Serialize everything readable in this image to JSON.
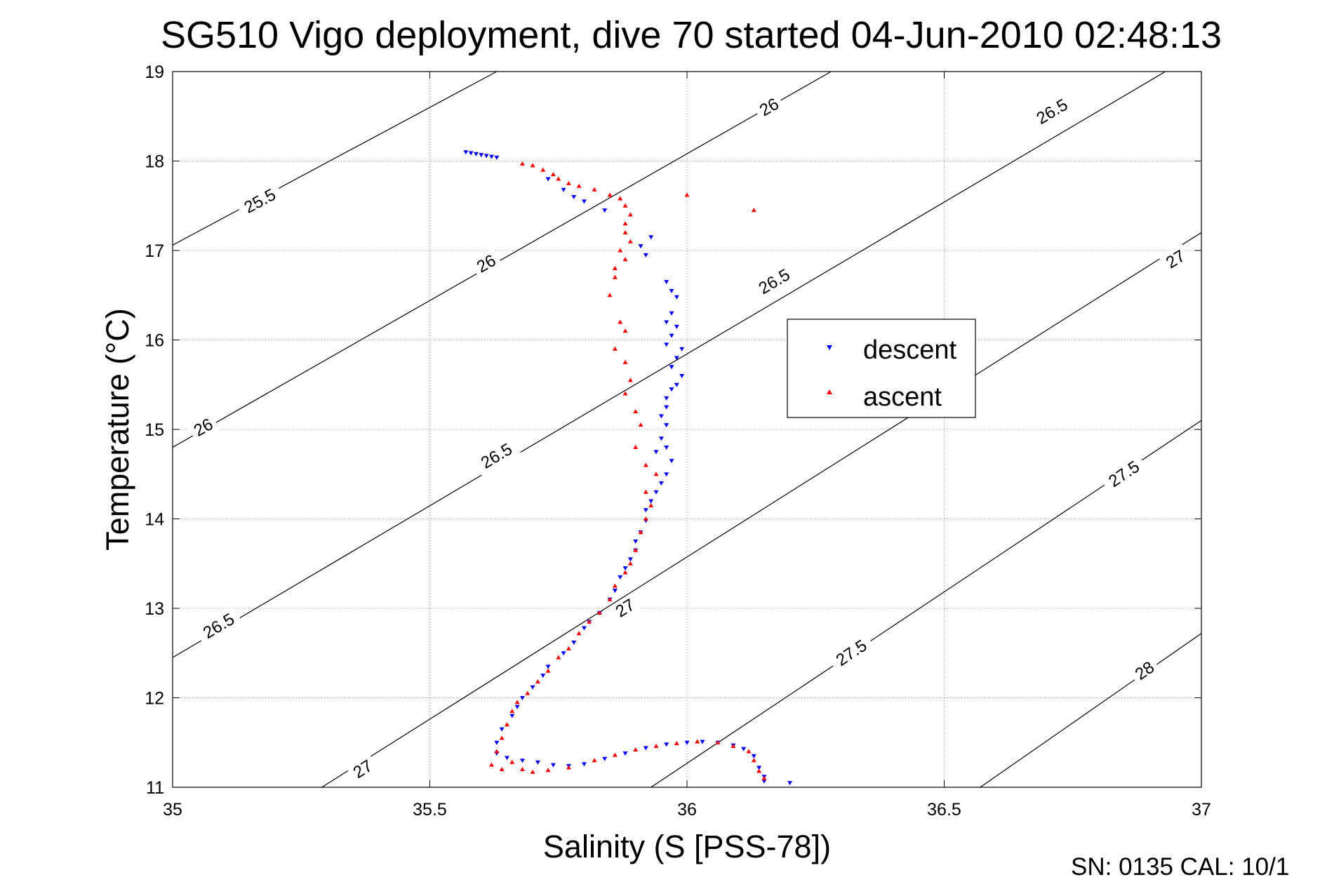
{
  "chart_data": {
    "type": "scatter",
    "title": "SG510 Vigo deployment, dive 70 started 04-Jun-2010 02:48:13",
    "xlabel": "Salinity (S [PSS-78])",
    "ylabel": "Temperature (°C)",
    "xlim": [
      35,
      37
    ],
    "ylim": [
      11,
      19
    ],
    "xticks": [
      35,
      35.5,
      36,
      36.5,
      37
    ],
    "xtick_labels": [
      "35",
      "35.5",
      "36",
      "36.5",
      "37"
    ],
    "yticks": [
      11,
      12,
      13,
      14,
      15,
      16,
      17,
      18,
      19
    ],
    "ytick_labels": [
      "11",
      "12",
      "13",
      "14",
      "15",
      "16",
      "17",
      "18",
      "19"
    ],
    "grid": true,
    "legend_position": "center-right",
    "footer": "SN: 0135  CAL: 10/1",
    "colors": {
      "descent": "#0000ff",
      "ascent": "#ff0000",
      "contour": "#000000"
    },
    "series": [
      {
        "name": "descent",
        "marker": "triangle-down",
        "color": "#0000ff",
        "points": [
          [
            35.57,
            18.1
          ],
          [
            35.58,
            18.09
          ],
          [
            35.59,
            18.08
          ],
          [
            35.6,
            18.07
          ],
          [
            35.61,
            18.06
          ],
          [
            35.62,
            18.05
          ],
          [
            35.63,
            18.04
          ],
          [
            35.73,
            17.8
          ],
          [
            35.76,
            17.68
          ],
          [
            35.78,
            17.6
          ],
          [
            35.8,
            17.55
          ],
          [
            35.84,
            17.45
          ],
          [
            35.93,
            17.15
          ],
          [
            35.91,
            17.05
          ],
          [
            35.92,
            16.95
          ],
          [
            35.96,
            16.65
          ],
          [
            35.97,
            16.55
          ],
          [
            35.98,
            16.48
          ],
          [
            35.97,
            16.3
          ],
          [
            35.96,
            16.2
          ],
          [
            35.98,
            16.15
          ],
          [
            35.97,
            16.05
          ],
          [
            35.96,
            15.95
          ],
          [
            35.99,
            15.9
          ],
          [
            35.98,
            15.8
          ],
          [
            35.97,
            15.7
          ],
          [
            35.99,
            15.6
          ],
          [
            35.98,
            15.5
          ],
          [
            35.97,
            15.45
          ],
          [
            35.96,
            15.35
          ],
          [
            35.96,
            15.25
          ],
          [
            35.95,
            15.15
          ],
          [
            35.96,
            15.05
          ],
          [
            35.95,
            14.9
          ],
          [
            35.96,
            14.8
          ],
          [
            35.94,
            14.75
          ],
          [
            35.97,
            14.65
          ],
          [
            35.96,
            14.5
          ],
          [
            35.95,
            14.4
          ],
          [
            35.94,
            14.3
          ],
          [
            35.93,
            14.2
          ],
          [
            35.92,
            14.1
          ],
          [
            35.92,
            13.98
          ],
          [
            35.91,
            13.85
          ],
          [
            35.9,
            13.75
          ],
          [
            35.9,
            13.65
          ],
          [
            35.89,
            13.55
          ],
          [
            35.88,
            13.45
          ],
          [
            35.87,
            13.35
          ],
          [
            35.86,
            13.2
          ],
          [
            35.85,
            13.1
          ],
          [
            35.83,
            12.95
          ],
          [
            35.81,
            12.85
          ],
          [
            35.8,
            12.78
          ],
          [
            35.78,
            12.62
          ],
          [
            35.76,
            12.5
          ],
          [
            35.73,
            12.35
          ],
          [
            35.72,
            12.25
          ],
          [
            35.7,
            12.12
          ],
          [
            35.68,
            12.0
          ],
          [
            35.67,
            11.9
          ],
          [
            35.66,
            11.8
          ],
          [
            35.64,
            11.65
          ],
          [
            35.63,
            11.5
          ],
          [
            35.63,
            11.38
          ],
          [
            35.65,
            11.33
          ],
          [
            35.68,
            11.3
          ],
          [
            35.71,
            11.28
          ],
          [
            35.74,
            11.25
          ],
          [
            35.77,
            11.24
          ],
          [
            35.8,
            11.26
          ],
          [
            35.84,
            11.32
          ],
          [
            35.88,
            11.38
          ],
          [
            35.92,
            11.44
          ],
          [
            35.96,
            11.48
          ],
          [
            36.0,
            11.5
          ],
          [
            36.03,
            11.51
          ],
          [
            36.06,
            11.5
          ],
          [
            36.09,
            11.47
          ],
          [
            36.11,
            11.43
          ],
          [
            36.13,
            11.35
          ],
          [
            36.14,
            11.22
          ],
          [
            36.15,
            11.12
          ],
          [
            36.15,
            11.07
          ],
          [
            36.2,
            11.05
          ]
        ]
      },
      {
        "name": "ascent",
        "marker": "triangle-up",
        "color": "#ff0000",
        "points": [
          [
            35.68,
            17.97
          ],
          [
            35.7,
            17.95
          ],
          [
            35.72,
            17.9
          ],
          [
            35.74,
            17.85
          ],
          [
            35.75,
            17.8
          ],
          [
            35.77,
            17.75
          ],
          [
            35.79,
            17.72
          ],
          [
            35.82,
            17.68
          ],
          [
            35.85,
            17.62
          ],
          [
            35.87,
            17.58
          ],
          [
            35.88,
            17.5
          ],
          [
            35.89,
            17.4
          ],
          [
            35.88,
            17.3
          ],
          [
            35.88,
            17.2
          ],
          [
            35.89,
            17.1
          ],
          [
            35.87,
            17.0
          ],
          [
            35.88,
            16.9
          ],
          [
            35.86,
            16.8
          ],
          [
            35.86,
            16.7
          ],
          [
            35.85,
            16.5
          ],
          [
            35.87,
            16.2
          ],
          [
            35.88,
            16.1
          ],
          [
            35.86,
            15.9
          ],
          [
            35.88,
            15.75
          ],
          [
            35.89,
            15.55
          ],
          [
            35.88,
            15.4
          ],
          [
            35.9,
            15.2
          ],
          [
            35.91,
            15.05
          ],
          [
            35.9,
            14.8
          ],
          [
            35.92,
            14.6
          ],
          [
            35.94,
            14.5
          ],
          [
            35.92,
            14.3
          ],
          [
            35.93,
            14.15
          ],
          [
            35.92,
            14.0
          ],
          [
            35.91,
            13.85
          ],
          [
            35.9,
            13.65
          ],
          [
            35.89,
            13.5
          ],
          [
            35.88,
            13.4
          ],
          [
            35.86,
            13.25
          ],
          [
            35.85,
            13.1
          ],
          [
            35.83,
            12.95
          ],
          [
            35.81,
            12.85
          ],
          [
            35.79,
            12.72
          ],
          [
            35.77,
            12.55
          ],
          [
            35.75,
            12.45
          ],
          [
            35.73,
            12.3
          ],
          [
            35.71,
            12.18
          ],
          [
            35.69,
            12.05
          ],
          [
            35.67,
            11.95
          ],
          [
            35.66,
            11.85
          ],
          [
            35.65,
            11.7
          ],
          [
            35.64,
            11.55
          ],
          [
            35.63,
            11.4
          ],
          [
            35.62,
            11.25
          ],
          [
            35.64,
            11.2
          ],
          [
            35.66,
            11.28
          ],
          [
            35.68,
            11.2
          ],
          [
            35.7,
            11.17
          ],
          [
            35.73,
            11.19
          ],
          [
            35.77,
            11.22
          ],
          [
            35.82,
            11.3
          ],
          [
            35.86,
            11.36
          ],
          [
            35.9,
            11.42
          ],
          [
            35.94,
            11.46
          ],
          [
            35.98,
            11.49
          ],
          [
            36.02,
            11.51
          ],
          [
            36.06,
            11.5
          ],
          [
            36.09,
            11.46
          ],
          [
            36.12,
            11.4
          ],
          [
            36.13,
            11.3
          ],
          [
            36.14,
            11.18
          ],
          [
            36.15,
            11.1
          ],
          [
            36.0,
            17.62
          ],
          [
            36.13,
            17.45
          ]
        ]
      }
    ],
    "contours": [
      {
        "label": "25.5",
        "line": [
          [
            35.0,
            17.06
          ],
          [
            35.63,
            19.0
          ]
        ],
        "label_at": [
          [
            35.17,
            17.55
          ]
        ]
      },
      {
        "label": "26",
        "line": [
          [
            35.0,
            14.8
          ],
          [
            36.28,
            19.0
          ]
        ],
        "label_at": [
          [
            35.06,
            15.02
          ],
          [
            35.61,
            16.85
          ],
          [
            36.16,
            18.6
          ]
        ]
      },
      {
        "label": "26.5",
        "line": [
          [
            35.0,
            12.45
          ],
          [
            36.93,
            19.0
          ]
        ],
        "label_at": [
          [
            35.09,
            12.8
          ],
          [
            35.63,
            14.7
          ],
          [
            36.17,
            16.65
          ],
          [
            36.71,
            18.55
          ]
        ]
      },
      {
        "label": "27",
        "line": [
          [
            35.29,
            11.0
          ],
          [
            37.0,
            17.2
          ]
        ],
        "label_at": [
          [
            35.37,
            11.2
          ],
          [
            35.88,
            13.0
          ],
          [
            36.95,
            16.9
          ]
        ]
      },
      {
        "label": "27.5",
        "line": [
          [
            35.93,
            11.0
          ],
          [
            37.0,
            15.1
          ]
        ],
        "label_at": [
          [
            36.32,
            12.5
          ],
          [
            36.85,
            14.5
          ]
        ]
      },
      {
        "label": "28",
        "line": [
          [
            36.57,
            11.0
          ],
          [
            37.0,
            12.72
          ]
        ],
        "label_at": [
          [
            36.89,
            12.3
          ]
        ]
      }
    ]
  }
}
